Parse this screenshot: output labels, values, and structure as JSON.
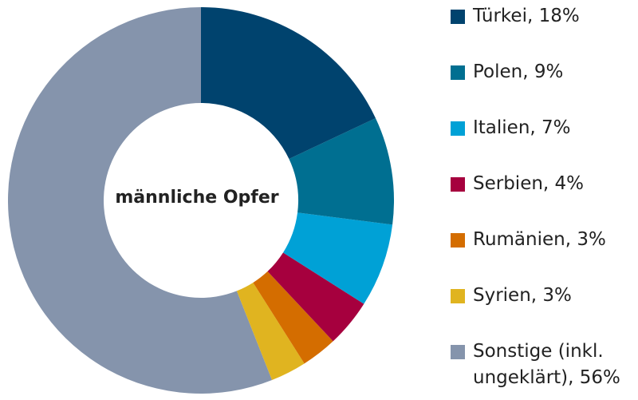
{
  "chart_data": {
    "type": "donut",
    "center_label": "männliche Opfer",
    "categories": [
      "Türkei, 18%",
      "Polen, 9%",
      "Italien, 7%",
      "Serbien, 4%",
      "Rumänien, 3%",
      "Syrien, 3%",
      "Sonstige (inkl. ungeklärt), 56%"
    ],
    "values": [
      18,
      9,
      7,
      4,
      3,
      3,
      56
    ],
    "colors": [
      "#00436e",
      "#006f91",
      "#00a1d6",
      "#a6003e",
      "#d46d00",
      "#e0b420",
      "#8594ac"
    ]
  }
}
